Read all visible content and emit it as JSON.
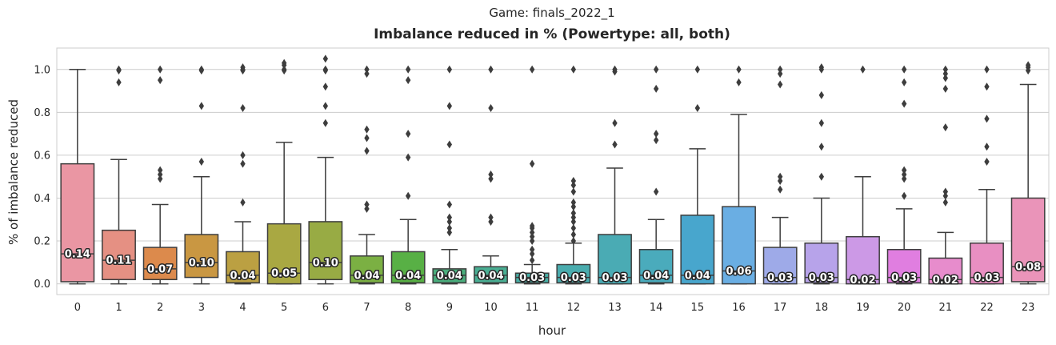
{
  "chart_data": {
    "type": "box",
    "suptitle": "Game: finals_2022_1",
    "title": "Imbalance reduced in % (Powertype: all, both)",
    "xlabel": "hour",
    "ylabel": "% of imbalance reduced",
    "ylim": [
      -0.05,
      1.1
    ],
    "yticks": [
      0.0,
      0.2,
      0.4,
      0.6,
      0.8,
      1.0
    ],
    "yticklabels": [
      "0.0",
      "0.2",
      "0.4",
      "0.6",
      "0.8",
      "1.0"
    ],
    "grid": true,
    "categories": [
      "0",
      "1",
      "2",
      "3",
      "4",
      "5",
      "6",
      "7",
      "8",
      "9",
      "10",
      "11",
      "12",
      "13",
      "14",
      "15",
      "16",
      "17",
      "18",
      "19",
      "20",
      "21",
      "22",
      "23"
    ],
    "boxes": [
      {
        "category": "0",
        "color": "#ea96a3",
        "whislo": 0.0,
        "q1": 0.01,
        "median": 0.14,
        "q3": 0.56,
        "whishi": 1.0,
        "median_label": "0.14",
        "outliers": []
      },
      {
        "category": "1",
        "color": "#e59083",
        "whislo": 0.0,
        "q1": 0.02,
        "median": 0.11,
        "q3": 0.25,
        "whishi": 0.58,
        "median_label": "0.11",
        "outliers": [
          0.94,
          0.995,
          1.0
        ]
      },
      {
        "category": "2",
        "color": "#dc8a4c",
        "whislo": 0.0,
        "q1": 0.02,
        "median": 0.07,
        "q3": 0.17,
        "whishi": 0.37,
        "median_label": "0.07",
        "outliers": [
          0.49,
          0.51,
          0.53,
          0.95,
          1.0
        ]
      },
      {
        "category": "3",
        "color": "#c99742",
        "whislo": 0.0,
        "q1": 0.03,
        "median": 0.1,
        "q3": 0.23,
        "whishi": 0.5,
        "median_label": "0.10",
        "outliers": [
          0.57,
          0.83,
          0.995,
          1.0
        ]
      },
      {
        "category": "4",
        "color": "#bba042",
        "whislo": 0.0,
        "q1": 0.005,
        "median": 0.04,
        "q3": 0.15,
        "whishi": 0.29,
        "median_label": "0.04",
        "outliers": [
          0.38,
          0.56,
          0.6,
          0.82,
          0.995,
          1.0,
          1.01
        ]
      },
      {
        "category": "5",
        "color": "#a9a842",
        "whislo": 0.0,
        "q1": 0.0,
        "median": 0.05,
        "q3": 0.28,
        "whishi": 0.66,
        "median_label": "0.05",
        "outliers": [
          0.995,
          1.0,
          1.02,
          1.03
        ]
      },
      {
        "category": "6",
        "color": "#98ab44",
        "whislo": 0.0,
        "q1": 0.02,
        "median": 0.1,
        "q3": 0.29,
        "whishi": 0.59,
        "median_label": "0.10",
        "outliers": [
          0.75,
          0.83,
          0.92,
          0.995,
          1.0,
          1.05
        ]
      },
      {
        "category": "7",
        "color": "#7bb043",
        "whislo": 0.0,
        "q1": 0.005,
        "median": 0.04,
        "q3": 0.13,
        "whishi": 0.23,
        "median_label": "0.04",
        "outliers": [
          0.35,
          0.37,
          0.62,
          0.68,
          0.72,
          0.98,
          1.0
        ]
      },
      {
        "category": "8",
        "color": "#58b045",
        "whislo": 0.0,
        "q1": 0.005,
        "median": 0.04,
        "q3": 0.15,
        "whishi": 0.3,
        "median_label": "0.04",
        "outliers": [
          0.41,
          0.59,
          0.7,
          0.95,
          1.0
        ]
      },
      {
        "category": "9",
        "color": "#4aad7c",
        "whislo": 0.0,
        "q1": 0.005,
        "median": 0.04,
        "q3": 0.07,
        "whishi": 0.16,
        "median_label": "0.04",
        "outliers": [
          0.24,
          0.26,
          0.29,
          0.31,
          0.37,
          0.65,
          0.83,
          1.0
        ]
      },
      {
        "category": "10",
        "color": "#4aae93",
        "whislo": 0.0,
        "q1": 0.005,
        "median": 0.04,
        "q3": 0.08,
        "whishi": 0.13,
        "median_label": "0.04",
        "outliers": [
          0.29,
          0.31,
          0.49,
          0.51,
          0.82,
          1.0
        ]
      },
      {
        "category": "11",
        "color": "#48ada4",
        "whislo": 0.0,
        "q1": 0.005,
        "median": 0.03,
        "q3": 0.05,
        "whishi": 0.09,
        "median_label": "0.03",
        "outliers": [
          0.11,
          0.14,
          0.16,
          0.2,
          0.22,
          0.24,
          0.26,
          0.27,
          0.56,
          1.0
        ]
      },
      {
        "category": "12",
        "color": "#4aacae",
        "whislo": 0.0,
        "q1": 0.005,
        "median": 0.03,
        "q3": 0.09,
        "whishi": 0.19,
        "median_label": "0.03",
        "outliers": [
          0.2,
          0.23,
          0.26,
          0.29,
          0.31,
          0.33,
          0.36,
          0.38,
          0.43,
          0.46,
          0.48,
          1.0
        ]
      },
      {
        "category": "13",
        "color": "#4aabb4",
        "whislo": 0.0,
        "q1": 0.0,
        "median": 0.03,
        "q3": 0.23,
        "whishi": 0.54,
        "median_label": "0.03",
        "outliers": [
          0.65,
          0.75,
          0.99,
          1.0
        ]
      },
      {
        "category": "14",
        "color": "#4aabbc",
        "whislo": 0.0,
        "q1": 0.005,
        "median": 0.04,
        "q3": 0.16,
        "whishi": 0.3,
        "median_label": "0.04",
        "outliers": [
          0.43,
          0.67,
          0.7,
          0.91,
          1.0
        ]
      },
      {
        "category": "15",
        "color": "#48a6cd",
        "whislo": 0.0,
        "q1": 0.0,
        "median": 0.04,
        "q3": 0.32,
        "whishi": 0.63,
        "median_label": "0.04",
        "outliers": [
          0.82,
          1.0
        ]
      },
      {
        "category": "16",
        "color": "#6aaee3",
        "whislo": 0.0,
        "q1": 0.0,
        "median": 0.06,
        "q3": 0.36,
        "whishi": 0.79,
        "median_label": "0.06",
        "outliers": [
          0.94,
          1.0
        ]
      },
      {
        "category": "17",
        "color": "#9eaae8",
        "whislo": 0.0,
        "q1": 0.0,
        "median": 0.03,
        "q3": 0.17,
        "whishi": 0.31,
        "median_label": "0.03",
        "outliers": [
          0.44,
          0.48,
          0.5,
          0.93,
          0.98,
          1.0
        ]
      },
      {
        "category": "18",
        "color": "#b7a3ea",
        "whislo": 0.0,
        "q1": 0.005,
        "median": 0.03,
        "q3": 0.19,
        "whishi": 0.4,
        "median_label": "0.03",
        "outliers": [
          0.5,
          0.64,
          0.75,
          0.88,
          1.0,
          1.01
        ]
      },
      {
        "category": "19",
        "color": "#cc99e6",
        "whislo": 0.0,
        "q1": 0.0,
        "median": 0.02,
        "q3": 0.22,
        "whishi": 0.5,
        "median_label": "0.02",
        "outliers": [
          1.0
        ]
      },
      {
        "category": "20",
        "color": "#e07ee0",
        "whislo": 0.0,
        "q1": 0.005,
        "median": 0.03,
        "q3": 0.16,
        "whishi": 0.35,
        "median_label": "0.03",
        "outliers": [
          0.41,
          0.49,
          0.51,
          0.53,
          0.84,
          0.94,
          1.0
        ]
      },
      {
        "category": "21",
        "color": "#e78ccc",
        "whislo": 0.0,
        "q1": 0.0,
        "median": 0.02,
        "q3": 0.12,
        "whishi": 0.24,
        "median_label": "0.02",
        "outliers": [
          0.38,
          0.41,
          0.43,
          0.73,
          0.91,
          0.96,
          0.98,
          1.0
        ]
      },
      {
        "category": "22",
        "color": "#e88fc2",
        "whislo": 0.0,
        "q1": 0.0,
        "median": 0.03,
        "q3": 0.19,
        "whishi": 0.44,
        "median_label": "0.03",
        "outliers": [
          0.57,
          0.64,
          0.77,
          0.92,
          1.0
        ]
      },
      {
        "category": "23",
        "color": "#ea94b9",
        "whislo": 0.0,
        "q1": 0.01,
        "median": 0.08,
        "q3": 0.4,
        "whishi": 0.93,
        "median_label": "0.08",
        "outliers": [
          0.995,
          1.01,
          1.02
        ]
      }
    ]
  }
}
